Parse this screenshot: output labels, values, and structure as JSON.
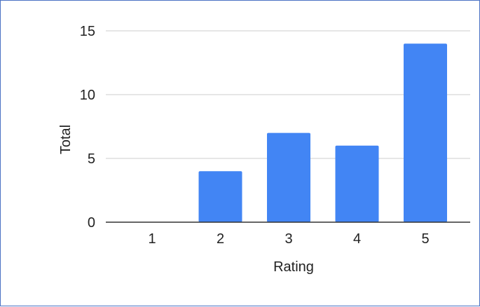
{
  "chart_data": {
    "type": "bar",
    "title": "",
    "xlabel": "Rating",
    "ylabel": "Total",
    "categories": [
      "1",
      "2",
      "3",
      "4",
      "5"
    ],
    "values": [
      0,
      4,
      7,
      6,
      14
    ],
    "ylim": [
      0,
      15
    ],
    "yticks": [
      "0",
      "5",
      "10",
      "15"
    ],
    "grid": true,
    "legend": "none",
    "bar_color": "#4285f4"
  }
}
